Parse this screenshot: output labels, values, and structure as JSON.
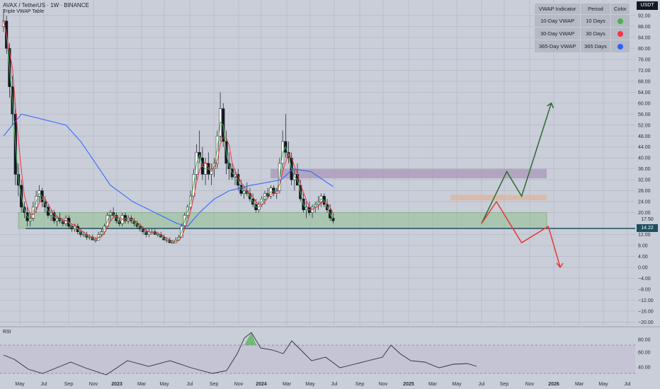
{
  "header": {
    "title": "AVAX / TetherUS · 1W · BINANCE",
    "subtitle": "Triple VWAP Table"
  },
  "currency_badge": "USDT",
  "price_badge": "14.22",
  "price_label_1": "17.50",
  "rsi_label": "RSI",
  "table": {
    "headers": [
      "VWAP Indicator",
      "Period",
      "Color"
    ],
    "rows": [
      {
        "indicator": "10-Day VWAP",
        "period": "10 Days",
        "color": "#4caf50"
      },
      {
        "indicator": "30-Day VWAP",
        "period": "30 Days",
        "color": "#f23645"
      },
      {
        "indicator": "365-Day VWAP",
        "period": "365 Days",
        "color": "#2962ff"
      }
    ]
  },
  "colors": {
    "background": "#c9ced9",
    "grid": "#b3b8c3",
    "vwap_10": "#4caf50",
    "vwap_30": "#f23645",
    "vwap_365": "#2962ff",
    "support_line": "#1e4f5e",
    "support_zone": "#8fbf8f",
    "resistance_zone_purple": "#a48bb0",
    "resistance_zone_orange": "#e3b08a",
    "bull_arrow": "#2e6b2e",
    "bear_arrow": "#e53935"
  },
  "chart_data": {
    "type": "candlestick",
    "title": "AVAX / TetherUS · 1W · BINANCE",
    "y_ticks": [
      "92.00",
      "88.00",
      "84.00",
      "80.00",
      "76.00",
      "72.00",
      "68.00",
      "64.00",
      "60.00",
      "56.00",
      "52.00",
      "48.00",
      "44.00",
      "40.00",
      "36.00",
      "32.00",
      "28.00",
      "24.00",
      "20.00",
      "12.00",
      "8.00",
      "4.00",
      "0.00",
      "−4.00",
      "−8.00",
      "−12.00",
      "−16.00",
      "−20.00"
    ],
    "x_ticks": [
      "May",
      "Jul",
      "Sep",
      "Nov",
      "2023",
      "Mar",
      "May",
      "Jul",
      "Sep",
      "Nov",
      "2024",
      "Mar",
      "May",
      "Jul",
      "Sep",
      "Nov",
      "2025",
      "Mar",
      "May",
      "Jul",
      "Sep",
      "Nov",
      "2026",
      "Mar",
      "May",
      "Jul"
    ],
    "rsi_ticks": [
      "80.00",
      "60.00",
      "40.00"
    ],
    "ylim": [
      -20,
      95
    ],
    "last_price": 14.22,
    "support_level": 14.22,
    "zones": [
      {
        "name": "support",
        "from": 14.22,
        "to": 20.0
      },
      {
        "name": "resistance-purple",
        "from": 32.5,
        "to": 36.0
      },
      {
        "name": "resistance-orange",
        "from": 24.5,
        "to": 26.5
      }
    ],
    "bull_path": [
      [
        2025.55,
        16
      ],
      [
        2025.72,
        35
      ],
      [
        2025.82,
        26
      ],
      [
        2026.02,
        60
      ]
    ],
    "bear_path": [
      [
        2025.55,
        16
      ],
      [
        2025.65,
        24
      ],
      [
        2025.82,
        9
      ],
      [
        2026.0,
        15
      ],
      [
        2026.08,
        0
      ]
    ],
    "candles": [
      [
        2022.33,
        88,
        94,
        86,
        90
      ],
      [
        2022.35,
        90,
        92,
        78,
        80
      ],
      [
        2022.37,
        80,
        82,
        62,
        66
      ],
      [
        2022.39,
        66,
        70,
        52,
        56
      ],
      [
        2022.41,
        56,
        60,
        30,
        34
      ],
      [
        2022.43,
        34,
        38,
        26,
        30
      ],
      [
        2022.45,
        30,
        32,
        20,
        22
      ],
      [
        2022.47,
        22,
        24,
        18,
        20
      ],
      [
        2022.49,
        20,
        22,
        15,
        17
      ],
      [
        2022.51,
        17,
        20,
        15,
        18
      ],
      [
        2022.53,
        18,
        24,
        17,
        22
      ],
      [
        2022.55,
        22,
        28,
        20,
        26
      ],
      [
        2022.57,
        26,
        30,
        24,
        28
      ],
      [
        2022.59,
        28,
        29,
        22,
        24
      ],
      [
        2022.61,
        24,
        26,
        20,
        22
      ],
      [
        2022.63,
        22,
        23,
        18,
        19
      ],
      [
        2022.65,
        19,
        21,
        17,
        20
      ],
      [
        2022.67,
        20,
        21,
        16,
        17
      ],
      [
        2022.69,
        17,
        19,
        15,
        18
      ],
      [
        2022.71,
        18,
        20,
        16,
        17
      ],
      [
        2022.73,
        17,
        18,
        15,
        16
      ],
      [
        2022.75,
        16,
        19,
        15,
        18
      ],
      [
        2022.77,
        18,
        19,
        14,
        15
      ],
      [
        2022.79,
        15,
        16,
        13,
        14
      ],
      [
        2022.81,
        14,
        16,
        13,
        15
      ],
      [
        2022.83,
        15,
        16,
        12,
        13
      ],
      [
        2022.85,
        13,
        14,
        11,
        12
      ],
      [
        2022.87,
        12,
        13,
        11,
        12
      ],
      [
        2022.89,
        12,
        13,
        10,
        11
      ],
      [
        2022.91,
        11,
        12,
        10,
        11
      ],
      [
        2022.93,
        11,
        12,
        10,
        10
      ],
      [
        2022.95,
        10,
        11,
        9,
        10
      ],
      [
        2022.97,
        10,
        13,
        10,
        12
      ],
      [
        2022.99,
        12,
        14,
        11,
        13
      ],
      [
        2023.01,
        13,
        16,
        12,
        15
      ],
      [
        2023.03,
        15,
        20,
        14,
        19
      ],
      [
        2023.05,
        19,
        21,
        17,
        20
      ],
      [
        2023.07,
        20,
        22,
        18,
        19
      ],
      [
        2023.09,
        19,
        20,
        16,
        17
      ],
      [
        2023.11,
        17,
        18,
        15,
        16
      ],
      [
        2023.13,
        16,
        20,
        15,
        19
      ],
      [
        2023.15,
        19,
        20,
        16,
        17
      ],
      [
        2023.17,
        17,
        19,
        16,
        18
      ],
      [
        2023.19,
        18,
        19,
        16,
        17
      ],
      [
        2023.21,
        17,
        18,
        15,
        16
      ],
      [
        2023.23,
        16,
        17,
        14,
        15
      ],
      [
        2023.25,
        15,
        16,
        13,
        14
      ],
      [
        2023.27,
        14,
        15,
        12,
        13
      ],
      [
        2023.29,
        13,
        14,
        11,
        12
      ],
      [
        2023.31,
        12,
        14,
        11,
        13
      ],
      [
        2023.33,
        13,
        14,
        12,
        13
      ],
      [
        2023.35,
        13,
        14,
        12,
        12
      ],
      [
        2023.37,
        12,
        13,
        11,
        12
      ],
      [
        2023.39,
        12,
        13,
        11,
        11
      ],
      [
        2023.41,
        11,
        12,
        10,
        10
      ],
      [
        2023.43,
        10,
        11,
        9,
        10
      ],
      [
        2023.45,
        10,
        11,
        9,
        9
      ],
      [
        2023.47,
        9,
        10,
        9,
        9
      ],
      [
        2023.49,
        9,
        11,
        9,
        10
      ],
      [
        2023.51,
        10,
        12,
        10,
        11
      ],
      [
        2023.53,
        11,
        16,
        11,
        15
      ],
      [
        2023.55,
        15,
        20,
        14,
        19
      ],
      [
        2023.57,
        19,
        23,
        18,
        22
      ],
      [
        2023.59,
        22,
        28,
        21,
        26
      ],
      [
        2023.61,
        26,
        36,
        25,
        34
      ],
      [
        2023.63,
        34,
        45,
        32,
        42
      ],
      [
        2023.65,
        42,
        50,
        38,
        40
      ],
      [
        2023.67,
        40,
        44,
        32,
        34
      ],
      [
        2023.69,
        34,
        40,
        30,
        38
      ],
      [
        2023.71,
        38,
        42,
        32,
        34
      ],
      [
        2023.73,
        34,
        38,
        30,
        36
      ],
      [
        2023.75,
        36,
        40,
        33,
        38
      ],
      [
        2023.77,
        38,
        50,
        36,
        48
      ],
      [
        2023.79,
        48,
        64,
        46,
        58
      ],
      [
        2023.81,
        58,
        60,
        44,
        46
      ],
      [
        2023.83,
        46,
        50,
        34,
        38
      ],
      [
        2023.85,
        38,
        42,
        32,
        36
      ],
      [
        2023.87,
        36,
        38,
        32,
        33
      ],
      [
        2023.89,
        33,
        36,
        30,
        34
      ],
      [
        2023.91,
        34,
        36,
        28,
        30
      ],
      [
        2023.93,
        30,
        32,
        26,
        27
      ],
      [
        2023.95,
        27,
        30,
        25,
        28
      ],
      [
        2023.97,
        28,
        31,
        26,
        27
      ],
      [
        2023.99,
        27,
        29,
        24,
        25
      ],
      [
        2024.01,
        25,
        27,
        22,
        23
      ],
      [
        2024.03,
        23,
        25,
        20,
        21
      ],
      [
        2024.05,
        21,
        24,
        20,
        23
      ],
      [
        2024.07,
        23,
        26,
        22,
        25
      ],
      [
        2024.09,
        25,
        28,
        23,
        27
      ],
      [
        2024.11,
        27,
        29,
        25,
        26
      ],
      [
        2024.13,
        26,
        30,
        25,
        29
      ],
      [
        2024.15,
        29,
        30,
        26,
        27
      ],
      [
        2024.17,
        27,
        29,
        25,
        28
      ],
      [
        2024.19,
        28,
        40,
        27,
        38
      ],
      [
        2024.21,
        38,
        50,
        36,
        46
      ],
      [
        2024.23,
        46,
        56,
        40,
        42
      ],
      [
        2024.25,
        42,
        46,
        38,
        40
      ],
      [
        2024.27,
        40,
        42,
        30,
        32
      ],
      [
        2024.29,
        32,
        36,
        28,
        34
      ],
      [
        2024.31,
        34,
        38,
        30,
        30
      ],
      [
        2024.33,
        30,
        32,
        24,
        25
      ],
      [
        2024.35,
        25,
        27,
        20,
        21
      ],
      [
        2024.37,
        21,
        24,
        18,
        22
      ],
      [
        2024.39,
        22,
        24,
        19,
        20
      ],
      [
        2024.41,
        20,
        23,
        18,
        22
      ],
      [
        2024.43,
        22,
        24,
        20,
        23
      ],
      [
        2024.45,
        23,
        26,
        21,
        24
      ],
      [
        2024.47,
        24,
        27,
        22,
        26
      ],
      [
        2024.49,
        26,
        27,
        22,
        23
      ],
      [
        2024.51,
        23,
        25,
        20,
        21
      ],
      [
        2024.53,
        21,
        23,
        17,
        18
      ],
      [
        2024.55,
        18,
        20,
        16,
        17
      ]
    ]
  }
}
